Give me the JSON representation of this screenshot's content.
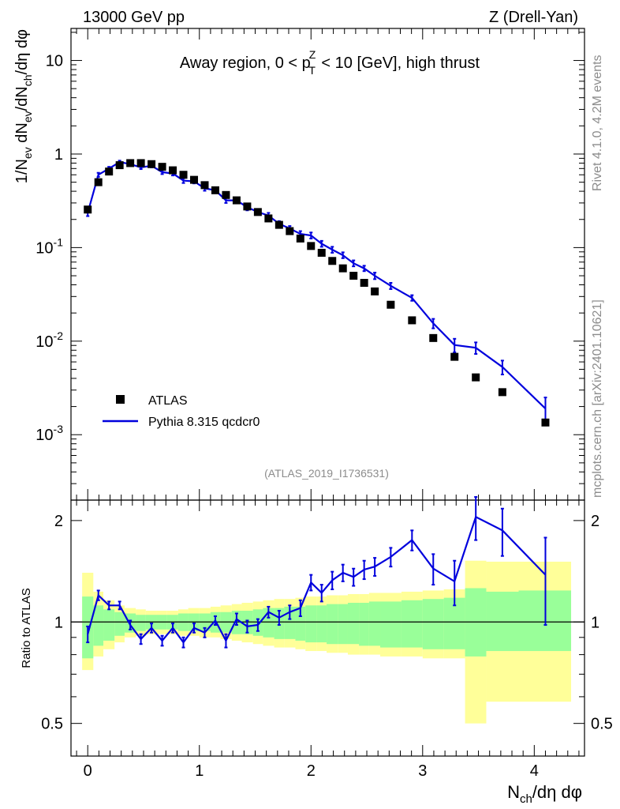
{
  "header": {
    "left": "13000 GeV pp",
    "right": "Z (Drell-Yan)"
  },
  "side": {
    "rivet": "Rivet 4.1.0,  4.2M events",
    "mcplots": "mcplots.cern.ch [arXiv:2401.10621]"
  },
  "chart_data": {
    "type": "scatter+line",
    "title": "Away region, 0 < p_T^Z < 10 [GeV], high thrust",
    "analysis_id": "(ATLAS_2019_I1736531)",
    "xlabel": "N_ch/dη dφ",
    "ylabel_main": "1/N_ev dN_ev/dN_ch/dη dφ",
    "ylabel_ratio": "Ratio to ATLAS",
    "xlim": [
      -0.15,
      4.45
    ],
    "ylim_main": [
      0.0002,
      22
    ],
    "ylim_ratio": [
      0.4,
      2.3
    ],
    "yscale_main": "log",
    "yscale_ratio": "log",
    "x_ticks": [
      "0",
      "1",
      "2",
      "3",
      "4"
    ],
    "y_ticks_main": [
      "10",
      "1",
      "10^-1",
      "10^-2",
      "10^-3"
    ],
    "y_ticks_ratio": [
      "2",
      "1",
      "0.5"
    ],
    "legend": [
      {
        "label": "ATLAS",
        "marker": "square",
        "color": "#000000"
      },
      {
        "label": "Pythia 8.315 qcdcr0",
        "marker": "line",
        "color": "#0000dd"
      }
    ],
    "x": [
      0.0,
      0.0952,
      0.1905,
      0.2857,
      0.381,
      0.4762,
      0.5714,
      0.6667,
      0.7619,
      0.8571,
      0.9524,
      1.0476,
      1.1429,
      1.2381,
      1.3333,
      1.4286,
      1.5238,
      1.619,
      1.7143,
      1.8095,
      1.9048,
      2.0,
      2.0952,
      2.1905,
      2.2857,
      2.381,
      2.4762,
      2.5714,
      2.7143,
      2.9048,
      3.0952,
      3.2857,
      3.4762,
      3.7143,
      4.1
    ],
    "series": [
      {
        "name": "ATLAS",
        "values": [
          0.255,
          0.5,
          0.65,
          0.76,
          0.8,
          0.8,
          0.78,
          0.73,
          0.67,
          0.6,
          0.53,
          0.465,
          0.41,
          0.365,
          0.32,
          0.275,
          0.24,
          0.205,
          0.175,
          0.15,
          0.125,
          0.104,
          0.088,
          0.072,
          0.06,
          0.05,
          0.042,
          0.034,
          0.0245,
          0.0167,
          0.0108,
          0.0068,
          0.0041,
          0.00285,
          0.00135
        ]
      },
      {
        "name": "Pythia 8.315 qcdcr0",
        "values": [
          0.235,
          0.6,
          0.7,
          0.82,
          0.78,
          0.72,
          0.75,
          0.64,
          0.62,
          0.52,
          0.51,
          0.43,
          0.41,
          0.32,
          0.32,
          0.27,
          0.24,
          0.22,
          0.18,
          0.16,
          0.14,
          0.135,
          0.11,
          0.095,
          0.083,
          0.068,
          0.06,
          0.05,
          0.039,
          0.029,
          0.0155,
          0.0091,
          0.0085,
          0.0053,
          0.0019
        ],
        "errors": [
          0.018,
          0.03,
          0.03,
          0.03,
          0.03,
          0.03,
          0.03,
          0.03,
          0.03,
          0.03,
          0.025,
          0.025,
          0.02,
          0.02,
          0.02,
          0.02,
          0.015,
          0.015,
          0.012,
          0.01,
          0.01,
          0.01,
          0.008,
          0.007,
          0.006,
          0.005,
          0.004,
          0.004,
          0.003,
          0.002,
          0.0018,
          0.0015,
          0.0012,
          0.0009,
          0.0006
        ]
      }
    ],
    "ratio": {
      "values": [
        0.92,
        1.2,
        1.12,
        1.12,
        0.98,
        0.89,
        0.96,
        0.88,
        0.96,
        0.87,
        0.96,
        0.93,
        1.01,
        0.88,
        1.02,
        0.97,
        0.98,
        1.07,
        1.03,
        1.07,
        1.1,
        1.31,
        1.22,
        1.33,
        1.4,
        1.36,
        1.43,
        1.46,
        1.56,
        1.75,
        1.44,
        1.32,
        2.05,
        1.87,
        1.38
      ],
      "errors": [
        0.05,
        0.04,
        0.03,
        0.03,
        0.03,
        0.03,
        0.03,
        0.03,
        0.03,
        0.03,
        0.03,
        0.03,
        0.03,
        0.04,
        0.04,
        0.04,
        0.04,
        0.04,
        0.05,
        0.05,
        0.06,
        0.07,
        0.07,
        0.08,
        0.08,
        0.08,
        0.09,
        0.09,
        0.1,
        0.12,
        0.15,
        0.2,
        0.3,
        0.3,
        0.4
      ],
      "band_edges": [
        -0.05,
        0.05,
        0.14,
        0.24,
        0.33,
        0.43,
        0.52,
        0.62,
        0.71,
        0.81,
        0.9,
        1.0,
        1.1,
        1.19,
        1.29,
        1.38,
        1.48,
        1.57,
        1.67,
        1.76,
        1.86,
        1.95,
        2.05,
        2.14,
        2.24,
        2.33,
        2.43,
        2.52,
        2.62,
        2.81,
        3.0,
        3.19,
        3.38,
        3.57,
        3.86,
        4.33
      ],
      "inner_lo": [
        0.78,
        0.85,
        0.88,
        0.91,
        0.93,
        0.94,
        0.95,
        0.95,
        0.95,
        0.94,
        0.94,
        0.94,
        0.93,
        0.93,
        0.92,
        0.92,
        0.91,
        0.9,
        0.89,
        0.89,
        0.88,
        0.87,
        0.87,
        0.86,
        0.86,
        0.86,
        0.85,
        0.85,
        0.84,
        0.84,
        0.83,
        0.83,
        0.79,
        0.82,
        0.82
      ],
      "inner_hi": [
        1.19,
        1.12,
        1.09,
        1.07,
        1.06,
        1.05,
        1.05,
        1.05,
        1.05,
        1.06,
        1.06,
        1.06,
        1.07,
        1.07,
        1.08,
        1.08,
        1.09,
        1.1,
        1.1,
        1.11,
        1.11,
        1.12,
        1.12,
        1.13,
        1.13,
        1.14,
        1.14,
        1.15,
        1.15,
        1.16,
        1.17,
        1.18,
        1.26,
        1.23,
        1.24
      ],
      "outer_lo": [
        0.72,
        0.79,
        0.83,
        0.87,
        0.9,
        0.91,
        0.92,
        0.92,
        0.92,
        0.91,
        0.91,
        0.9,
        0.9,
        0.89,
        0.88,
        0.87,
        0.86,
        0.85,
        0.84,
        0.84,
        0.83,
        0.82,
        0.82,
        0.81,
        0.81,
        0.8,
        0.8,
        0.8,
        0.79,
        0.79,
        0.78,
        0.78,
        0.5,
        0.58,
        0.58
      ],
      "outer_hi": [
        1.4,
        1.23,
        1.16,
        1.12,
        1.1,
        1.09,
        1.08,
        1.08,
        1.08,
        1.09,
        1.1,
        1.1,
        1.11,
        1.12,
        1.13,
        1.14,
        1.15,
        1.16,
        1.17,
        1.17,
        1.18,
        1.19,
        1.19,
        1.2,
        1.2,
        1.21,
        1.21,
        1.22,
        1.22,
        1.23,
        1.24,
        1.25,
        1.52,
        1.51,
        1.51
      ]
    }
  }
}
